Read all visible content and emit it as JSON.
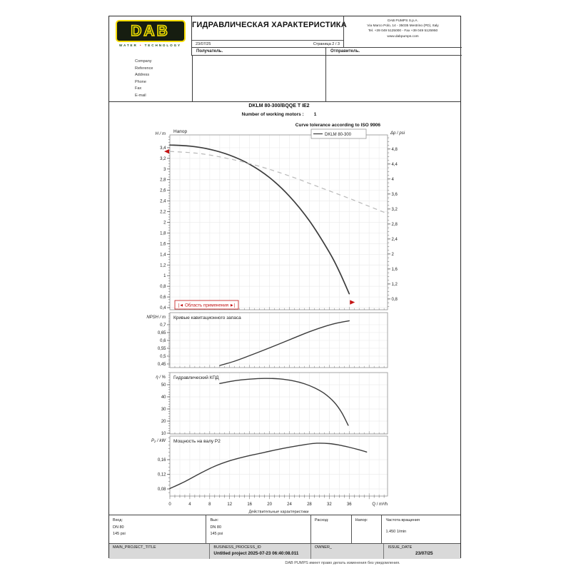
{
  "header": {
    "logo": {
      "brand": "DAB",
      "tagline_left": "WATER",
      "tagline_right": "TECHNOLOGY"
    },
    "title": "ГИДРАВЛИЧЕСКАЯ ХАРАКТЕРИСТИКА",
    "date": "23/07/25",
    "page_info": "Страница 2 / 3",
    "company_address": [
      "DAB PUMPS S.p.A.",
      "Via Marco Polo, 14 - 35035 Mestrino (PD), Italy",
      "Tel. +39 049 5125000 - Fax +39 049 5125950",
      "www.dabpumps.com"
    ],
    "recipient_label": "Получатель.",
    "sender_label": "Отправитель.",
    "contact_fields": [
      "Company",
      "Reference",
      "Address",
      "Phone",
      "Fax",
      "E-mail"
    ]
  },
  "pump": {
    "model": "DKLM 80-300/BQQE T IE2",
    "motors_label": "Number of working motors :",
    "motors_value": "1",
    "tolerance_note": "Curve tolerance according to ISO 9906"
  },
  "x_axis": {
    "min": 0,
    "max": 36,
    "step": 4,
    "minor": 1,
    "plot_max": 43.7,
    "unit": "Q / m³/h",
    "caption": "Действительные характеристики"
  },
  "chart_data": [
    {
      "type": "line",
      "title": "Напор",
      "ylabel": "H / m",
      "y2label": "Δp / psi",
      "xlim": [
        0,
        36
      ],
      "yticks": {
        "min": 0.4,
        "max": 3.4,
        "step": 0.2,
        "minor": 0.05
      },
      "y2ticks": {
        "min": 0.8,
        "max": 4.8,
        "step": 0.4,
        "minor": 0.1,
        "psi_per_m": 1.4223
      },
      "legend": "DKLM 80-300",
      "series": [
        {
          "name": "DKLM 80-300",
          "style": "solid",
          "points": [
            [
              0,
              3.45
            ],
            [
              4,
              3.43
            ],
            [
              8,
              3.37
            ],
            [
              12,
              3.26
            ],
            [
              16,
              3.09
            ],
            [
              20,
              2.84
            ],
            [
              24,
              2.49
            ],
            [
              28,
              2.03
            ],
            [
              32,
              1.44
            ],
            [
              34,
              1.08
            ],
            [
              36,
              0.66
            ]
          ]
        },
        {
          "name": "tolerance-curve",
          "style": "dashed",
          "points": [
            [
              0,
              3.33
            ],
            [
              6,
              3.29
            ],
            [
              12,
              3.19
            ],
            [
              18,
              3.05
            ],
            [
              24,
              2.87
            ],
            [
              30,
              2.66
            ],
            [
              36,
              2.45
            ],
            [
              40,
              2.3
            ],
            [
              43.5,
              2.17
            ]
          ]
        }
      ],
      "app_range": {
        "label": "Область применения",
        "start_marker": [
          0,
          3.33
        ],
        "end_marker": [
          36,
          0.5
        ]
      }
    },
    {
      "type": "line",
      "title": "Кривые кавитационного запаса",
      "ylabel": "NPSH / m",
      "yticks": {
        "min": 0.45,
        "max": 0.7,
        "step": 0.05,
        "minor": 0.01
      },
      "series": [
        {
          "name": "npsh",
          "style": "solid",
          "points": [
            [
              10,
              0.44
            ],
            [
              13,
              0.468
            ],
            [
              16,
              0.503
            ],
            [
              19,
              0.54
            ],
            [
              22,
              0.578
            ],
            [
              25,
              0.617
            ],
            [
              28,
              0.655
            ],
            [
              31,
              0.688
            ],
            [
              33.5,
              0.71
            ],
            [
              36,
              0.725
            ]
          ]
        }
      ]
    },
    {
      "type": "line",
      "title": "Гидравлический КПД",
      "ylabel": "η / %",
      "yticks": {
        "min": 10,
        "max": 50,
        "step": 10,
        "minor": 2
      },
      "series": [
        {
          "name": "efficiency",
          "style": "solid",
          "points": [
            [
              10,
              51
            ],
            [
              13,
              53.3
            ],
            [
              16,
              54.6
            ],
            [
              19,
              55.2
            ],
            [
              22,
              54.8
            ],
            [
              25,
              53
            ],
            [
              27,
              50.8
            ],
            [
              29,
              47.5
            ],
            [
              31,
              42.8
            ],
            [
              33,
              35.5
            ],
            [
              34.5,
              27
            ],
            [
              35.8,
              16.5
            ]
          ]
        }
      ]
    },
    {
      "type": "line",
      "title": "Мощность на валу  P2",
      "ylabel": "P₂ / kW",
      "yticks": {
        "min": 0.08,
        "max": 0.16,
        "step": 0.04,
        "minor": 0.01
      },
      "series": [
        {
          "name": "shaft-power",
          "style": "solid",
          "points": [
            [
              0,
              0.081
            ],
            [
              3,
              0.1
            ],
            [
              6,
              0.122
            ],
            [
              9,
              0.142
            ],
            [
              12,
              0.157
            ],
            [
              15,
              0.168
            ],
            [
              18,
              0.177
            ],
            [
              21,
              0.186
            ],
            [
              24,
              0.194
            ],
            [
              27,
              0.201
            ],
            [
              29.5,
              0.205
            ],
            [
              32,
              0.204
            ],
            [
              34,
              0.2
            ],
            [
              36,
              0.194
            ],
            [
              38,
              0.187
            ],
            [
              39.5,
              0.181
            ]
          ]
        }
      ]
    }
  ],
  "spec_row": {
    "inlet_label": "Вход:",
    "inlet_dn": "DN 80",
    "inlet_psi": "145 psi",
    "outlet_label": "Вых:",
    "outlet_dn": "DN 80",
    "outlet_psi": "145 psi",
    "flow_label": "Расход:",
    "head_label": "Напор:",
    "speed_label": "Частота вращения",
    "speed_value": "1.450 1/min"
  },
  "footer_bar": {
    "project_label": "MAIN_PROJECT_TITLE",
    "process_label": "BUSINESS_PROCESS_ID",
    "process_value": "Untitled project 2025-07-23 06:40:08.011",
    "owner_label": "OWNER_",
    "issue_label": "ISSUE_DATE",
    "issue_value": "23/07/25"
  },
  "disclaimer": "DAB PUMPS имеет право делать изменения без уведомления."
}
